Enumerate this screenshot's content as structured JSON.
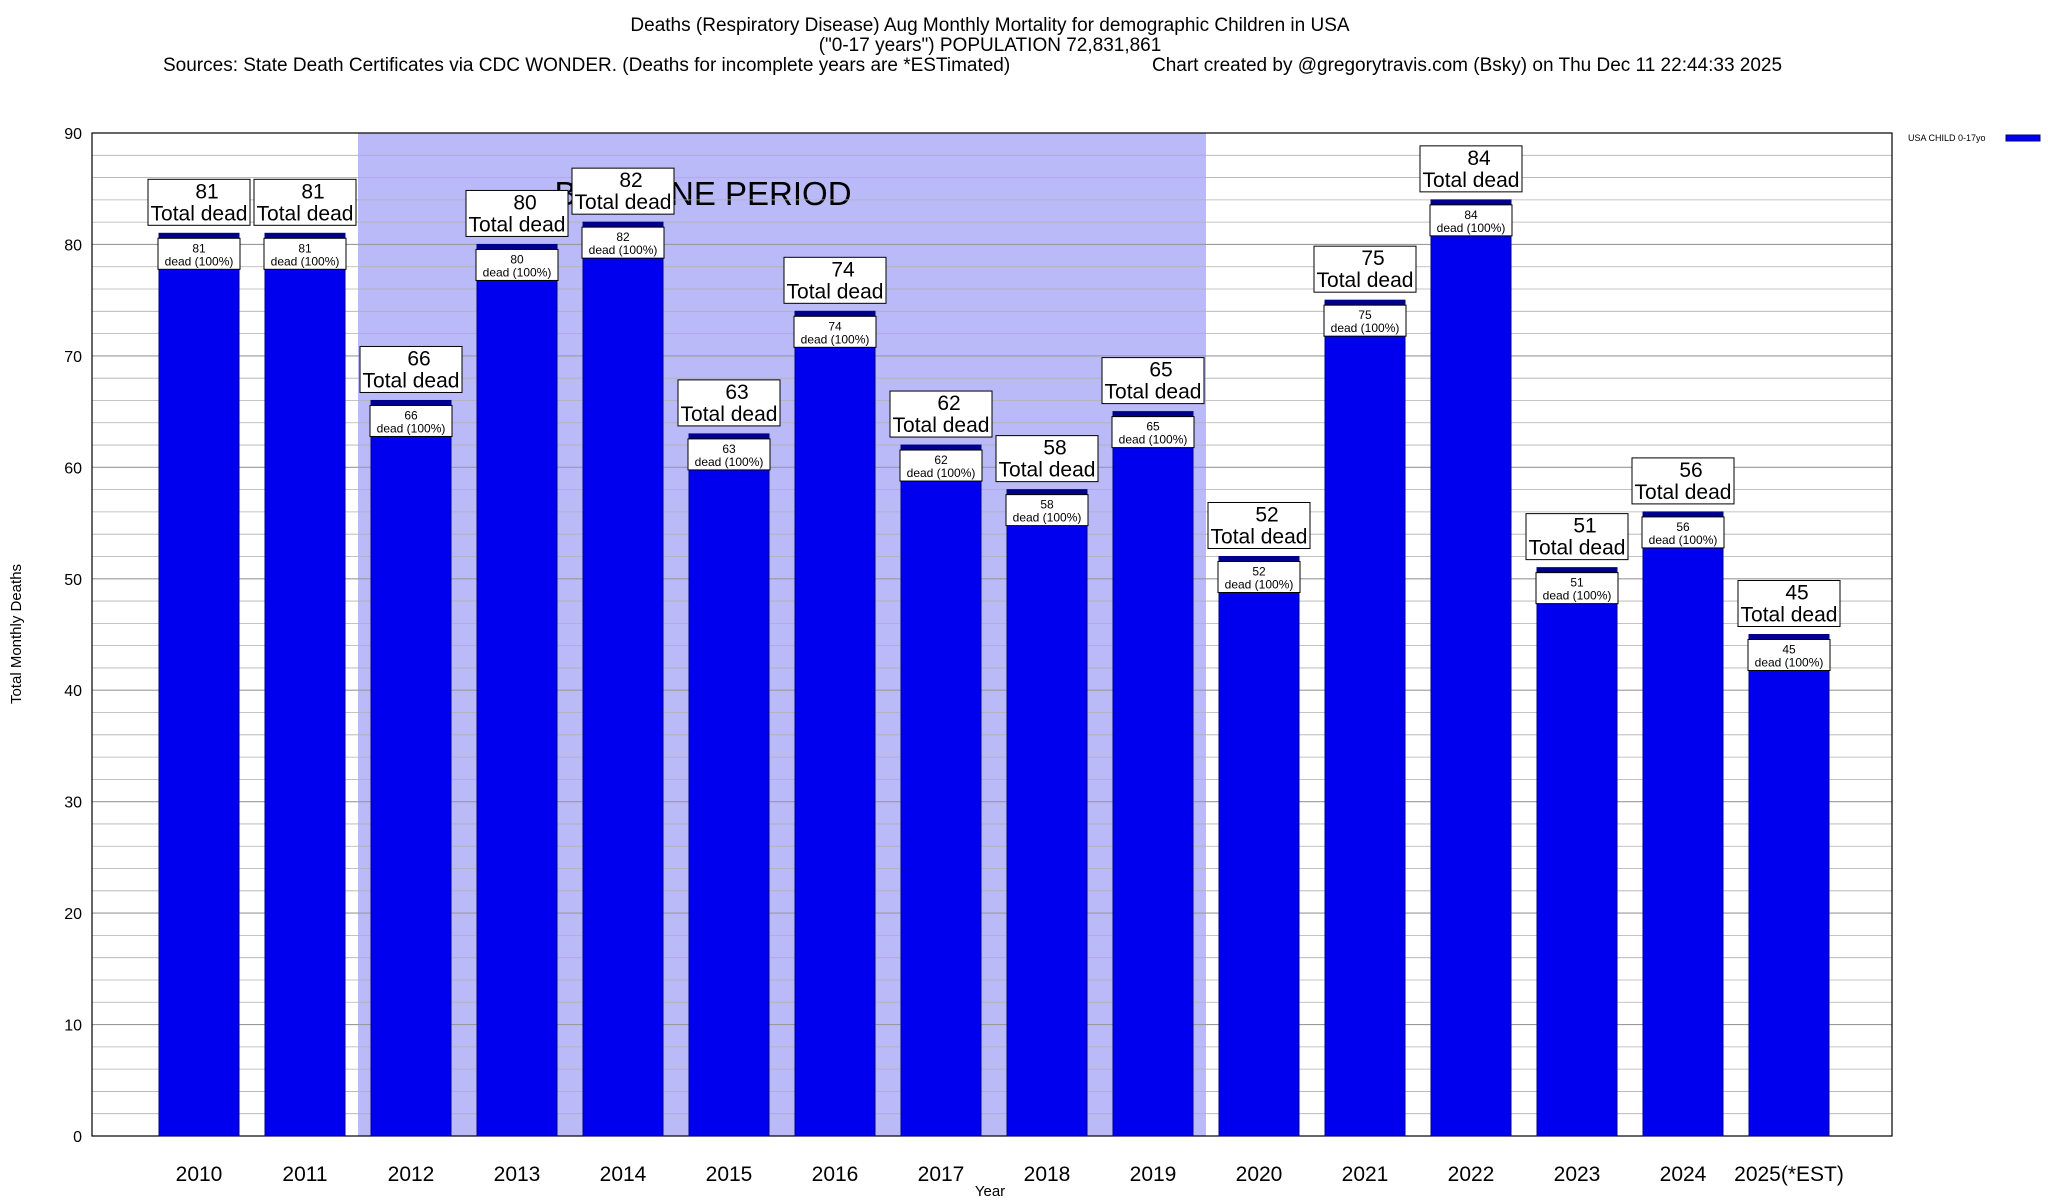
{
  "header": {
    "title_line1": "Deaths (Respiratory Disease) Aug Monthly Mortality for demographic Children in USA",
    "title_line2": "(\"0-17 years\") POPULATION 72,831,861",
    "sources": "Sources: State Death Certificates via CDC WONDER. (Deaths for incomplete years are *ESTimated)",
    "credit": "Chart created by @gregorytravis.com (Bsky) on Thu Dec 11 22:44:33 2025"
  },
  "chart_data": {
    "type": "bar",
    "categories": [
      "2010",
      "2011",
      "2012",
      "2013",
      "2014",
      "2015",
      "2016",
      "2017",
      "2018",
      "2019",
      "2020",
      "2021",
      "2022",
      "2023",
      "2024",
      "2025(*EST)"
    ],
    "series": [
      {
        "name": "USA CHILD 0-17yo",
        "values": [
          81,
          81,
          66,
          80,
          82,
          63,
          74,
          62,
          58,
          65,
          52,
          75,
          84,
          51,
          56,
          45
        ]
      }
    ],
    "bar_labels_top": [
      "81",
      "81",
      "66",
      "80",
      "82",
      "63",
      "74",
      "62",
      "58",
      "65",
      "52",
      "75",
      "84",
      "51",
      "56",
      "45"
    ],
    "bar_labels_top_line2": "Total dead",
    "bar_labels_inner": [
      "81",
      "81",
      "66",
      "80",
      "82",
      "63",
      "74",
      "62",
      "58",
      "65",
      "52",
      "75",
      "84",
      "51",
      "56",
      "45"
    ],
    "bar_labels_inner_line2": "dead (100%)",
    "xlabel": "Year",
    "ylabel": "Total Monthly Deaths",
    "ylim": [
      0,
      90
    ],
    "yticks": [
      "0",
      "10",
      "20",
      "30",
      "40",
      "50",
      "60",
      "70",
      "80",
      "90"
    ],
    "grid": true,
    "legend_position": "top-right",
    "baseline_period": {
      "label": "BASELINE PERIOD",
      "from_category": "2012",
      "to_category": "2019"
    },
    "colors": {
      "bar": "#0000ee",
      "bar_cap": "#00008b",
      "baseline": "#babaf8",
      "grid": "#b0b0b0"
    }
  }
}
